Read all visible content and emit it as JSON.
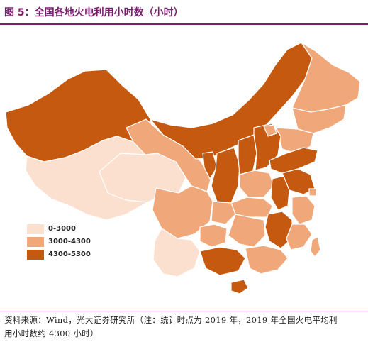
{
  "figure": {
    "title": "图 5：全国各地火电利用小时数（小时）"
  },
  "colors": {
    "level_low": "#fbe0d0",
    "level_mid": "#f0a87a",
    "level_high": "#c4590f",
    "border": "#ffffff",
    "accent": "#7a1f6e"
  },
  "legend": {
    "items": [
      {
        "label": "0-3000",
        "color": "#fbe0d0"
      },
      {
        "label": "3000-4300",
        "color": "#f0a87a"
      },
      {
        "label": "4300-5300",
        "color": "#c4590f"
      }
    ]
  },
  "source": {
    "line1": "资料来源：Wind，光大证券研究所（注：统计时点为 2019 年，2019 年全国火电平均利",
    "line2": "用小时数约 4300 小时）"
  }
}
